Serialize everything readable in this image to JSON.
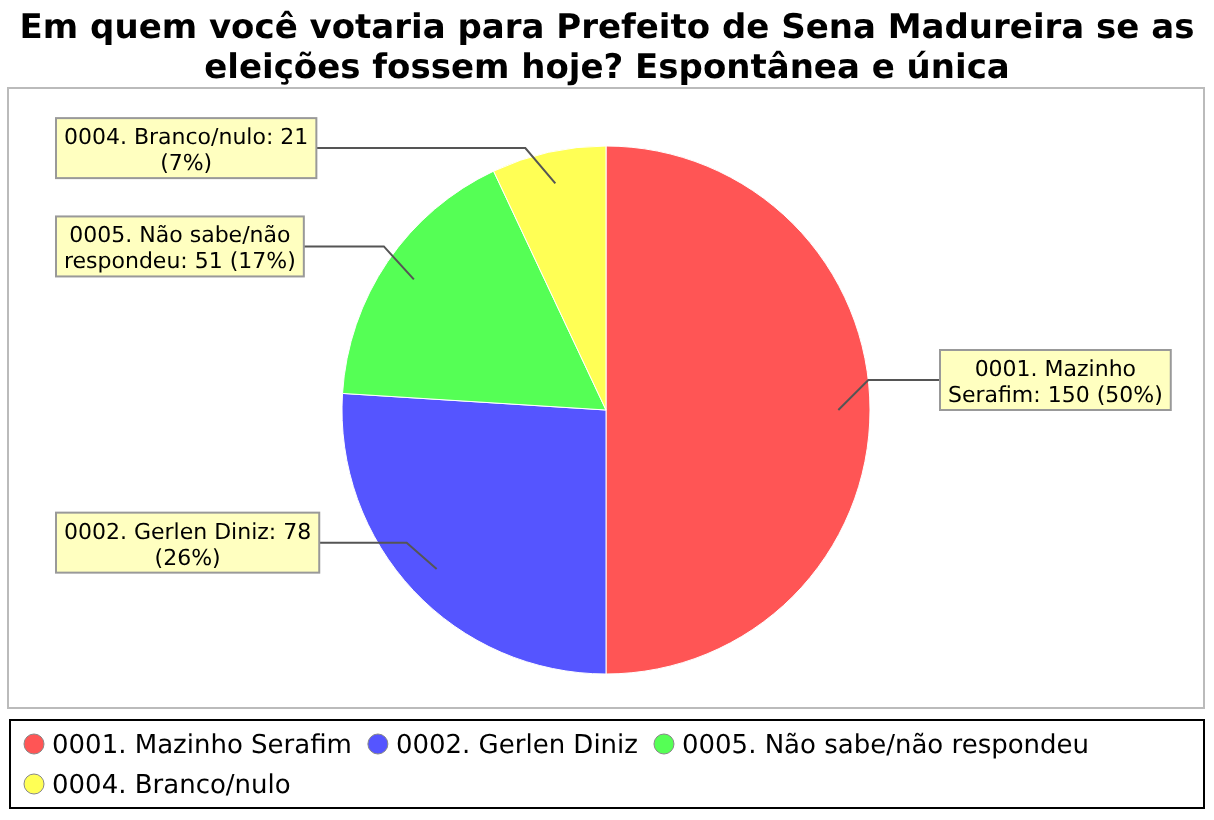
{
  "chart_data": {
    "type": "pie",
    "title": "Em quem você votaria para Prefeito de Sena Madureira se as eleições fossem hoje? Espontânea e única",
    "categories": [
      "0001. Mazinho Serafim",
      "0002. Gerlen Diniz",
      "0005. Não sabe/não respondeu",
      "0004. Branco/nulo"
    ],
    "values": [
      150,
      78,
      51,
      21
    ],
    "colors": [
      "#ff5555",
      "#5555ff",
      "#55ff55",
      "#ffff55"
    ],
    "value_labels": [
      "0001. Mazinho Serafim: 150 (50%)",
      "0002. Gerlen Diniz: 78 (26%)",
      "0005. Não sabe/não respondeu: 51 (17%)",
      "0004. Branco/nulo: 21 (7%)"
    ],
    "legend": "bottom"
  }
}
